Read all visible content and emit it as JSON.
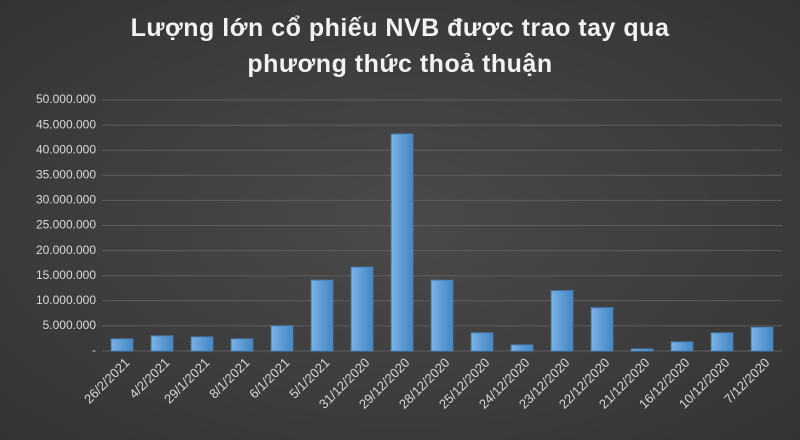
{
  "chart_data": {
    "type": "bar",
    "title": "Lượng lớn cổ phiếu NVB được trao tay qua phương thức thoả thuận",
    "categories": [
      "26/2/2021",
      "4/2/2021",
      "29/1/2021",
      "8/1/2021",
      "6/1/2021",
      "5/1/2021",
      "31/12/2020",
      "29/12/2020",
      "28/12/2020",
      "25/12/2020",
      "24/12/2020",
      "23/12/2020",
      "22/12/2020",
      "21/12/2020",
      "16/12/2020",
      "10/12/2020",
      "7/12/2020"
    ],
    "values": [
      2400000,
      3000000,
      2800000,
      2400000,
      5000000,
      14100000,
      16700000,
      43200000,
      14100000,
      3600000,
      1200000,
      12000000,
      8600000,
      400000,
      1800000,
      3600000,
      4700000
    ],
    "color": "#5b9bd5",
    "ylim": [
      0,
      50000000
    ],
    "yticks": [
      {
        "value": 0,
        "label": "-"
      },
      {
        "value": 5000000,
        "label": "5.000.000"
      },
      {
        "value": 10000000,
        "label": "10.000.000"
      },
      {
        "value": 15000000,
        "label": "15.000.000"
      },
      {
        "value": 20000000,
        "label": "20.000.000"
      },
      {
        "value": 25000000,
        "label": "25.000.000"
      },
      {
        "value": 30000000,
        "label": "30.000.000"
      },
      {
        "value": 35000000,
        "label": "35.000.000"
      },
      {
        "value": 40000000,
        "label": "40.000.000"
      },
      {
        "value": 45000000,
        "label": "45.000.000"
      },
      {
        "value": 50000000,
        "label": "50.000.000"
      }
    ],
    "grid": true
  }
}
